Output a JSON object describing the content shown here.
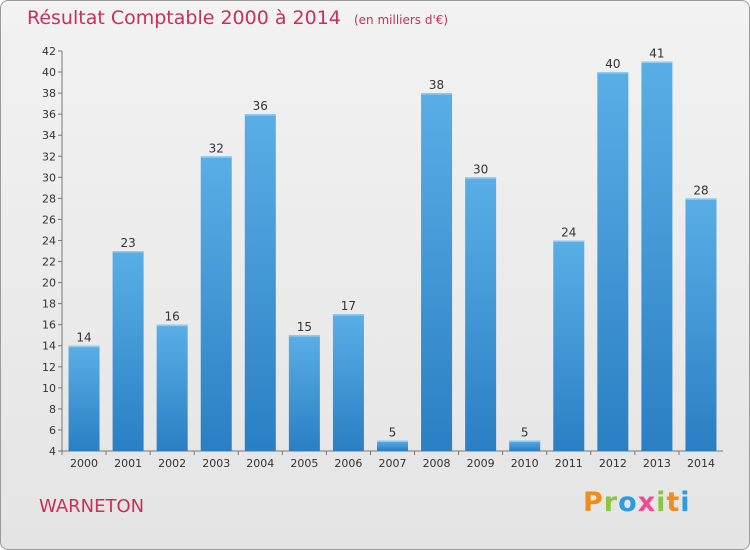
{
  "header": {
    "title": "Résultat Comptable 2000 à 2014",
    "subtitle": "(en milliers d'€)"
  },
  "town": "WARNETON",
  "logo_text": "Proxiti",
  "colors": {
    "title": "#c8305a",
    "bar_light": "#5aaee6",
    "bar_dark": "#2a7fc4",
    "axis": "#777777",
    "logo": [
      "#f08c1e",
      "#8bc53f",
      "#2e9be0",
      "#ea4d94",
      "#8bc53f",
      "#f08c1e",
      "#2e9be0"
    ]
  },
  "chart_data": {
    "type": "bar",
    "title": "Résultat Comptable 2000 à 2014",
    "subtitle": "(en milliers d'€)",
    "categories": [
      "2000",
      "2001",
      "2002",
      "2003",
      "2004",
      "2005",
      "2006",
      "2007",
      "2008",
      "2009",
      "2010",
      "2011",
      "2012",
      "2013",
      "2014"
    ],
    "values": [
      14,
      23,
      16,
      32,
      36,
      15,
      17,
      5,
      38,
      30,
      5,
      24,
      40,
      41,
      28
    ],
    "ylim": [
      4,
      42
    ],
    "yticks": [
      4,
      6,
      8,
      10,
      12,
      14,
      16,
      18,
      20,
      22,
      24,
      26,
      28,
      30,
      32,
      34,
      36,
      38,
      40,
      42
    ],
    "grid": false,
    "data_labels": true
  }
}
